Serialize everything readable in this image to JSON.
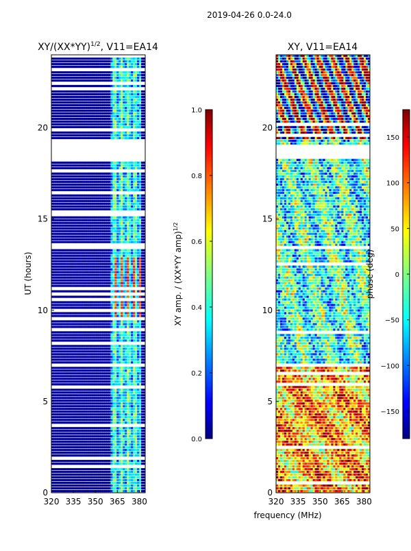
{
  "figure": {
    "suptitle": "2019-04-26 0.0-24.0",
    "shared_xlabel": "frequency (MHz)"
  },
  "chart_data": [
    {
      "type": "heatmap",
      "title_main": "XY/(XX*YY)",
      "title_sup": "1/2",
      "title_rest": ", V11=EA14",
      "xlabel": "",
      "ylabel": "UT (hours)",
      "xlim": [
        320,
        384
      ],
      "ylim": [
        0,
        24
      ],
      "xticks": [
        320,
        335,
        350,
        365,
        380
      ],
      "yticks": [
        0,
        5,
        10,
        15,
        20
      ],
      "colorbar": {
        "label_main": "XY amp. / (XX*YY amp)",
        "label_sup": "1/2",
        "range": [
          0.0,
          1.0
        ],
        "ticks": [
          "0.0",
          "0.2",
          "0.4",
          "0.6",
          "0.8",
          "1.0"
        ],
        "tick_values": [
          0.0,
          0.2,
          0.4,
          0.6,
          0.8,
          1.0
        ]
      },
      "data_gap_hours": [
        [
          18.2,
          19.4
        ],
        [
          13.4,
          13.6
        ]
      ],
      "active_band_mhz": [
        361,
        381
      ],
      "colormap": [
        "#00007f",
        "#0000ff",
        "#00ffff",
        "#7fff7f",
        "#ffff00",
        "#ff0000",
        "#7f0000"
      ]
    },
    {
      "type": "heatmap",
      "title_main": "XY, V11=EA14",
      "title_sup": "",
      "title_rest": "",
      "xlabel": "frequency (MHz)",
      "ylabel": "",
      "xlim": [
        320,
        384
      ],
      "ylim": [
        0,
        24
      ],
      "xticks": [
        320,
        335,
        350,
        365,
        380
      ],
      "yticks": [
        0,
        5,
        10,
        15,
        20
      ],
      "colorbar": {
        "label_main": "phase (deg)",
        "label_sup": "",
        "range": [
          -180,
          180
        ],
        "ticks": [
          "−150",
          "−100",
          "−50",
          "0",
          "50",
          "100",
          "150"
        ],
        "tick_values": [
          -150,
          -100,
          -50,
          0,
          50,
          100,
          150
        ]
      },
      "data_gap_hours": [
        [
          18.3,
          19.1
        ]
      ],
      "active_band_mhz": [
        320,
        384
      ],
      "colormap": [
        "#00007f",
        "#0000ff",
        "#00ffff",
        "#7fff7f",
        "#ffff00",
        "#ff0000",
        "#7f0000"
      ]
    }
  ]
}
